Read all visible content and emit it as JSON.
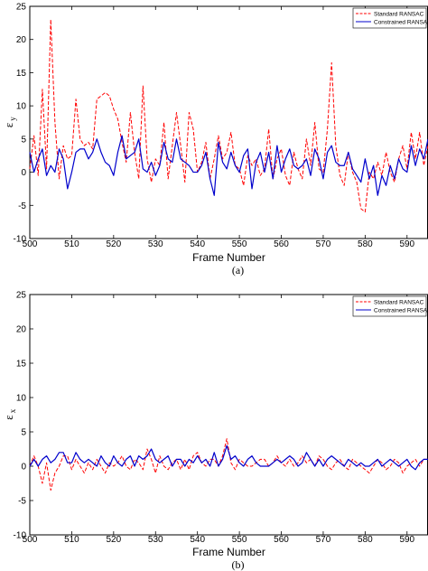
{
  "chart_data": [
    {
      "type": "line",
      "caption": "(a)",
      "xlabel": "Frame Number",
      "ylabel": "ε",
      "ylabel_sub": "y",
      "xlim": [
        500,
        595
      ],
      "ylim": [
        -10,
        25
      ],
      "xticks": [
        500,
        510,
        520,
        530,
        540,
        550,
        560,
        570,
        580,
        590
      ],
      "yticks": [
        -10,
        -5,
        0,
        5,
        10,
        15,
        20,
        25
      ],
      "grid": false,
      "legend_position": "top-right",
      "colors": {
        "standard": "#ff0000",
        "constrained": "#0000cc"
      },
      "series": [
        {
          "name": "Standard RANSAC",
          "style": "dashed",
          "x": [
            500,
            501,
            502,
            503,
            504,
            505,
            506,
            507,
            508,
            509,
            510,
            511,
            512,
            513,
            514,
            515,
            516,
            517,
            518,
            519,
            520,
            521,
            522,
            523,
            524,
            525,
            526,
            527,
            528,
            529,
            530,
            531,
            532,
            533,
            534,
            535,
            536,
            537,
            538,
            539,
            540,
            541,
            542,
            543,
            544,
            545,
            546,
            547,
            548,
            549,
            550,
            551,
            552,
            553,
            554,
            555,
            556,
            557,
            558,
            559,
            560,
            561,
            562,
            563,
            564,
            565,
            566,
            567,
            568,
            569,
            570,
            571,
            572,
            573,
            574,
            575,
            576,
            577,
            578,
            579,
            580,
            581,
            582,
            583,
            584,
            585,
            586,
            587,
            588,
            589,
            590,
            591,
            592,
            593,
            594,
            595
          ],
          "y": [
            0.5,
            5.5,
            -0.5,
            12.5,
            0.5,
            23,
            7.5,
            -1,
            4,
            2,
            2.5,
            11,
            5,
            4,
            4.5,
            3.5,
            11,
            11.5,
            12,
            11.5,
            9.5,
            8,
            4.5,
            1.5,
            9,
            3,
            -1,
            13,
            2,
            -1.5,
            2,
            1,
            7.5,
            -1,
            4,
            9,
            4,
            -1.5,
            9,
            6.5,
            0,
            1.5,
            4.5,
            -1,
            2,
            5.5,
            2,
            3,
            6,
            1,
            0.5,
            -2,
            2.5,
            1,
            2,
            -0.5,
            0.5,
            6.5,
            -1,
            2,
            3.5,
            -0.5,
            -2,
            3,
            0.5,
            -1,
            5,
            1,
            7.5,
            0.5,
            0,
            6.5,
            16.5,
            4,
            -0.5,
            -2,
            3,
            0,
            -1.5,
            -5.5,
            -6,
            0,
            -1,
            1.5,
            -0.5,
            3,
            0,
            -1.5,
            2,
            4,
            0.5,
            6,
            2,
            6,
            1,
            4
          ]
        },
        {
          "name": "Constrained RANSAC",
          "style": "solid",
          "x": [
            500,
            501,
            502,
            503,
            504,
            505,
            506,
            507,
            508,
            509,
            510,
            511,
            512,
            513,
            514,
            515,
            516,
            517,
            518,
            519,
            520,
            521,
            522,
            523,
            524,
            525,
            526,
            527,
            528,
            529,
            530,
            531,
            532,
            533,
            534,
            535,
            536,
            537,
            538,
            539,
            540,
            541,
            542,
            543,
            544,
            545,
            546,
            547,
            548,
            549,
            550,
            551,
            552,
            553,
            554,
            555,
            556,
            557,
            558,
            559,
            560,
            561,
            562,
            563,
            564,
            565,
            566,
            567,
            568,
            569,
            570,
            571,
            572,
            573,
            574,
            575,
            576,
            577,
            578,
            579,
            580,
            581,
            582,
            583,
            584,
            585,
            586,
            587,
            588,
            589,
            590,
            591,
            592,
            593,
            594,
            595
          ],
          "y": [
            3,
            0,
            2,
            3.5,
            -0.5,
            1,
            0,
            3.5,
            2,
            -2.5,
            0,
            3,
            3.5,
            3.5,
            2,
            3,
            5,
            3,
            1.5,
            1,
            -0.5,
            3,
            5.5,
            2,
            2.5,
            3,
            5,
            0.5,
            0,
            1.5,
            -0.5,
            1,
            4.5,
            2,
            1.5,
            5,
            2,
            1.5,
            1,
            0,
            0,
            1,
            3,
            -1,
            -3.5,
            4.5,
            1.5,
            0.5,
            3,
            1,
            0,
            2.5,
            3.5,
            -2.5,
            1.5,
            3,
            0,
            3,
            -1,
            4,
            0,
            2,
            3.5,
            1,
            0.5,
            1,
            2,
            -0.5,
            3.5,
            2,
            -1,
            3,
            4,
            1.5,
            1,
            1,
            3,
            0.5,
            -0.5,
            -1.5,
            2,
            -1,
            1,
            -3.5,
            -0.5,
            -2,
            1,
            -1,
            2,
            0.5,
            0,
            4,
            1,
            3.5,
            2,
            5
          ]
        }
      ]
    },
    {
      "type": "line",
      "caption": "(b)",
      "xlabel": "Frame Number",
      "ylabel": "ε",
      "ylabel_sub": "x",
      "xlim": [
        500,
        595
      ],
      "ylim": [
        -10,
        25
      ],
      "xticks": [
        500,
        510,
        520,
        530,
        540,
        550,
        560,
        570,
        580,
        590
      ],
      "yticks": [
        -10,
        -5,
        0,
        5,
        10,
        15,
        20,
        25
      ],
      "grid": false,
      "legend_position": "top-right",
      "colors": {
        "standard": "#ff0000",
        "constrained": "#0000cc"
      },
      "series": [
        {
          "name": "Standard RANSAC",
          "style": "dashed",
          "x": [
            500,
            501,
            502,
            503,
            504,
            505,
            506,
            507,
            508,
            509,
            510,
            511,
            512,
            513,
            514,
            515,
            516,
            517,
            518,
            519,
            520,
            521,
            522,
            523,
            524,
            525,
            526,
            527,
            528,
            529,
            530,
            531,
            532,
            533,
            534,
            535,
            536,
            537,
            538,
            539,
            540,
            541,
            542,
            543,
            544,
            545,
            546,
            547,
            548,
            549,
            550,
            551,
            552,
            553,
            554,
            555,
            556,
            557,
            558,
            559,
            560,
            561,
            562,
            563,
            564,
            565,
            566,
            567,
            568,
            569,
            570,
            571,
            572,
            573,
            574,
            575,
            576,
            577,
            578,
            579,
            580,
            581,
            582,
            583,
            584,
            585,
            586,
            587,
            588,
            589,
            590,
            591,
            592,
            593,
            594,
            595
          ],
          "y": [
            0,
            1.5,
            0,
            -2.5,
            0.5,
            -3.5,
            -1,
            0,
            1.5,
            1.5,
            -0.5,
            1,
            0,
            -1,
            0.5,
            -0.5,
            1,
            0,
            -1,
            0.5,
            0,
            0.5,
            1.5,
            0,
            -0.5,
            1,
            0.5,
            -0.5,
            2.5,
            1,
            -1,
            1.5,
            0,
            -0.5,
            0.5,
            1,
            -0.5,
            1,
            -0.5,
            1.5,
            2,
            0.5,
            0,
            1,
            1,
            0,
            1.5,
            4,
            0.5,
            -0.5,
            1,
            0.5,
            0,
            0,
            0.5,
            1,
            1,
            0,
            0.5,
            1.5,
            0.5,
            0,
            1,
            0,
            0.5,
            1.5,
            0.5,
            1,
            0,
            1.5,
            1,
            0,
            -0.5,
            0.5,
            1,
            0,
            -0.5,
            1,
            0.5,
            0,
            -0.5,
            -1,
            0,
            1,
            0.5,
            -0.5,
            0,
            1,
            0.5,
            -1,
            0,
            0.5,
            1,
            0,
            1,
            1
          ]
        },
        {
          "name": "Constrained RANSAC",
          "style": "solid",
          "x": [
            500,
            501,
            502,
            503,
            504,
            505,
            506,
            507,
            508,
            509,
            510,
            511,
            512,
            513,
            514,
            515,
            516,
            517,
            518,
            519,
            520,
            521,
            522,
            523,
            524,
            525,
            526,
            527,
            528,
            529,
            530,
            531,
            532,
            533,
            534,
            535,
            536,
            537,
            538,
            539,
            540,
            541,
            542,
            543,
            544,
            545,
            546,
            547,
            548,
            549,
            550,
            551,
            552,
            553,
            554,
            555,
            556,
            557,
            558,
            559,
            560,
            561,
            562,
            563,
            564,
            565,
            566,
            567,
            568,
            569,
            570,
            571,
            572,
            573,
            574,
            575,
            576,
            577,
            578,
            579,
            580,
            581,
            582,
            583,
            584,
            585,
            586,
            587,
            588,
            589,
            590,
            591,
            592,
            593,
            594,
            595
          ],
          "y": [
            0,
            1,
            0,
            1,
            1.5,
            0.5,
            1,
            2,
            2,
            0.5,
            0.5,
            2,
            1,
            0.5,
            1,
            0.5,
            0,
            1.5,
            0.5,
            0,
            1.5,
            0.5,
            0,
            1,
            1.5,
            0,
            1.5,
            1,
            1.5,
            2.5,
            1,
            0.5,
            1,
            1.5,
            0,
            1,
            1,
            0,
            1,
            0.5,
            1.5,
            0.5,
            1,
            0,
            2,
            0,
            1,
            3,
            1,
            1.5,
            0.5,
            0,
            1,
            1.5,
            0.5,
            0,
            0,
            0,
            0.5,
            1,
            0.5,
            1,
            1.5,
            1,
            0,
            0.5,
            2,
            1,
            0,
            1,
            0,
            1,
            1.5,
            1,
            0.5,
            0,
            1,
            0.5,
            0,
            0.5,
            0,
            0,
            0.5,
            1,
            0,
            0.5,
            1,
            0.5,
            0,
            0.5,
            1,
            0,
            -0.5,
            0.5,
            1,
            1
          ]
        }
      ]
    }
  ]
}
